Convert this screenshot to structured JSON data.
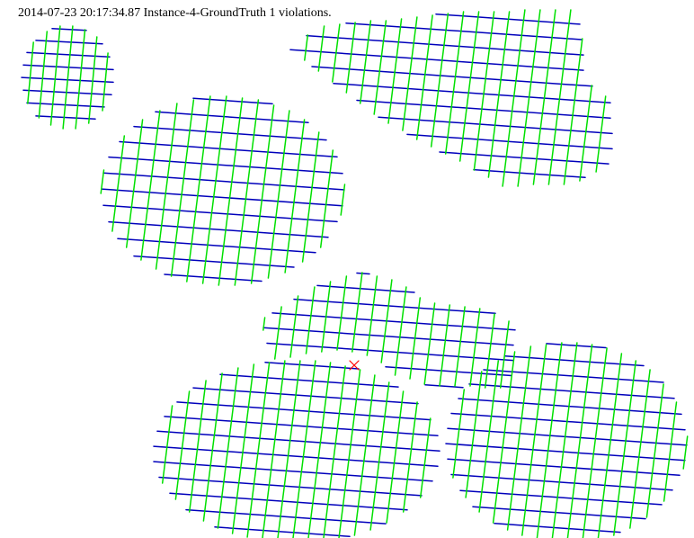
{
  "header": {
    "caption": "2014-07-23 20:17:34.87 Instance-4-GroundTruth 1 violations."
  },
  "colors": {
    "background": "#ffffff",
    "row_lines": "#0000bb",
    "column_lines": "#00e000",
    "violation_marker": "#ff0000"
  },
  "marker": {
    "icon": "x-cross-icon",
    "count": 1
  }
}
